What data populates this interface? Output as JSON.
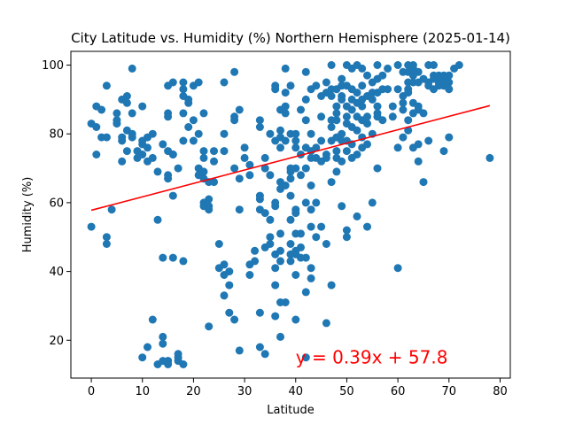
{
  "chart_data": {
    "type": "scatter",
    "title": "City Latitude vs. Humidity (%) Northern Hemisphere (2025-01-14)",
    "xlabel": "Latitude",
    "ylabel": "Humidity (%)",
    "xlim": [
      -4,
      82
    ],
    "ylim": [
      9,
      104
    ],
    "xticks": [
      0,
      10,
      20,
      30,
      40,
      50,
      60,
      70,
      80
    ],
    "yticks": [
      20,
      40,
      60,
      80,
      100
    ],
    "grid": false,
    "legend": "none",
    "colors": {
      "points": "#1f77b4",
      "regression": "#ff0000",
      "annotation": "#ff0000"
    },
    "regression": {
      "slope": 0.39,
      "intercept": 57.8,
      "x_range": [
        0,
        78
      ],
      "equation_label": "y = 0.39x + 57.8",
      "label_anchor": [
        40,
        15
      ]
    },
    "points": [
      [
        0,
        83
      ],
      [
        0,
        53
      ],
      [
        1,
        88
      ],
      [
        1,
        82
      ],
      [
        1,
        74
      ],
      [
        2,
        79
      ],
      [
        2,
        87
      ],
      [
        3,
        79
      ],
      [
        3,
        48
      ],
      [
        3,
        50
      ],
      [
        3,
        94
      ],
      [
        4,
        58
      ],
      [
        5,
        84
      ],
      [
        5,
        86
      ],
      [
        5,
        83
      ],
      [
        6,
        90
      ],
      [
        6,
        72
      ],
      [
        6,
        78
      ],
      [
        6,
        79
      ],
      [
        7,
        91
      ],
      [
        7,
        89
      ],
      [
        7,
        75
      ],
      [
        7,
        81
      ],
      [
        8,
        99
      ],
      [
        8,
        86
      ],
      [
        8,
        80
      ],
      [
        8,
        79
      ],
      [
        9,
        73
      ],
      [
        9,
        75
      ],
      [
        10,
        88
      ],
      [
        10,
        15
      ],
      [
        10,
        77
      ],
      [
        10,
        78
      ],
      [
        10,
        74
      ],
      [
        11,
        72
      ],
      [
        11,
        76
      ],
      [
        11,
        79
      ],
      [
        11,
        18
      ],
      [
        12,
        80
      ],
      [
        12,
        26
      ],
      [
        12,
        73
      ],
      [
        13,
        69
      ],
      [
        13,
        55
      ],
      [
        13,
        13
      ],
      [
        14,
        14
      ],
      [
        14,
        21
      ],
      [
        14,
        19
      ],
      [
        14,
        44
      ],
      [
        14,
        77
      ],
      [
        15,
        86
      ],
      [
        15,
        85
      ],
      [
        15,
        94
      ],
      [
        15,
        13
      ],
      [
        15,
        14
      ],
      [
        15,
        14
      ],
      [
        15,
        67
      ],
      [
        15,
        68
      ],
      [
        15,
        75
      ],
      [
        16,
        95
      ],
      [
        16,
        74
      ],
      [
        16,
        44
      ],
      [
        16,
        62
      ],
      [
        16,
        74
      ],
      [
        17,
        70
      ],
      [
        17,
        14
      ],
      [
        17,
        15
      ],
      [
        17,
        16
      ],
      [
        18,
        95
      ],
      [
        18,
        93
      ],
      [
        18,
        91
      ],
      [
        18,
        86
      ],
      [
        18,
        78
      ],
      [
        18,
        43
      ],
      [
        18,
        13
      ],
      [
        19,
        89
      ],
      [
        19,
        90
      ],
      [
        19,
        82
      ],
      [
        20,
        84
      ],
      [
        20,
        78
      ],
      [
        20,
        94
      ],
      [
        21,
        95
      ],
      [
        21,
        80
      ],
      [
        21,
        70
      ],
      [
        21,
        68
      ],
      [
        22,
        69
      ],
      [
        22,
        86
      ],
      [
        22,
        75
      ],
      [
        22,
        73
      ],
      [
        22,
        67
      ],
      [
        22,
        60
      ],
      [
        22,
        59
      ],
      [
        23,
        59
      ],
      [
        23,
        58
      ],
      [
        23,
        24
      ],
      [
        23,
        61
      ],
      [
        23,
        66
      ],
      [
        24,
        75
      ],
      [
        24,
        72
      ],
      [
        24,
        66
      ],
      [
        25,
        41
      ],
      [
        25,
        48
      ],
      [
        26,
        95
      ],
      [
        26,
        80
      ],
      [
        26,
        75
      ],
      [
        26,
        42
      ],
      [
        26,
        39
      ],
      [
        26,
        33
      ],
      [
        27,
        40
      ],
      [
        27,
        36
      ],
      [
        27,
        28
      ],
      [
        28,
        98
      ],
      [
        28,
        85
      ],
      [
        28,
        84
      ],
      [
        28,
        70
      ],
      [
        28,
        26
      ],
      [
        29,
        87
      ],
      [
        29,
        67
      ],
      [
        29,
        58
      ],
      [
        29,
        17
      ],
      [
        30,
        76
      ],
      [
        30,
        73
      ],
      [
        31,
        71
      ],
      [
        31,
        68
      ],
      [
        31,
        42
      ],
      [
        31,
        39
      ],
      [
        32,
        46
      ],
      [
        32,
        43
      ],
      [
        33,
        84
      ],
      [
        33,
        82
      ],
      [
        33,
        62
      ],
      [
        33,
        61
      ],
      [
        33,
        58
      ],
      [
        33,
        28
      ],
      [
        33,
        18
      ],
      [
        34,
        70
      ],
      [
        34,
        73
      ],
      [
        34,
        57
      ],
      [
        34,
        47
      ],
      [
        34,
        16
      ],
      [
        35,
        80
      ],
      [
        35,
        68
      ],
      [
        35,
        55
      ],
      [
        35,
        50
      ],
      [
        35,
        48
      ],
      [
        36,
        94
      ],
      [
        36,
        93
      ],
      [
        36,
        78
      ],
      [
        36,
        45
      ],
      [
        36,
        41
      ],
      [
        36,
        36
      ],
      [
        36,
        27
      ],
      [
        36,
        59
      ],
      [
        36,
        60
      ],
      [
        37,
        87
      ],
      [
        37,
        81
      ],
      [
        37,
        79
      ],
      [
        37,
        76
      ],
      [
        37,
        66
      ],
      [
        37,
        64
      ],
      [
        37,
        51
      ],
      [
        37,
        46
      ],
      [
        37,
        43
      ],
      [
        37,
        31
      ],
      [
        37,
        21
      ],
      [
        38,
        99
      ],
      [
        38,
        92
      ],
      [
        38,
        88
      ],
      [
        38,
        86
      ],
      [
        38,
        78
      ],
      [
        38,
        65
      ],
      [
        38,
        31
      ],
      [
        39,
        94
      ],
      [
        39,
        80
      ],
      [
        39,
        70
      ],
      [
        39,
        69
      ],
      [
        39,
        67
      ],
      [
        39,
        62
      ],
      [
        39,
        55
      ],
      [
        39,
        48
      ],
      [
        39,
        45
      ],
      [
        39,
        43
      ],
      [
        40,
        80
      ],
      [
        40,
        78
      ],
      [
        40,
        76
      ],
      [
        40,
        70
      ],
      [
        40,
        58
      ],
      [
        40,
        57
      ],
      [
        40,
        51
      ],
      [
        40,
        46
      ],
      [
        40,
        45
      ],
      [
        40,
        39
      ],
      [
        40,
        26
      ],
      [
        41,
        87
      ],
      [
        41,
        74
      ],
      [
        41,
        68
      ],
      [
        41,
        51
      ],
      [
        41,
        47
      ],
      [
        41,
        44
      ],
      [
        42,
        98
      ],
      [
        42,
        90
      ],
      [
        42,
        84
      ],
      [
        42,
        76
      ],
      [
        42,
        70
      ],
      [
        42,
        60
      ],
      [
        42,
        44
      ],
      [
        42,
        34
      ],
      [
        42,
        15
      ],
      [
        43,
        93
      ],
      [
        43,
        80
      ],
      [
        43,
        75
      ],
      [
        43,
        73
      ],
      [
        43,
        65
      ],
      [
        43,
        58
      ],
      [
        43,
        53
      ],
      [
        43,
        41
      ],
      [
        43,
        38
      ],
      [
        44,
        94
      ],
      [
        44,
        76
      ],
      [
        44,
        73
      ],
      [
        44,
        60
      ],
      [
        44,
        50
      ],
      [
        45,
        91
      ],
      [
        45,
        85
      ],
      [
        45,
        78
      ],
      [
        45,
        72
      ],
      [
        45,
        53
      ],
      [
        46,
        95
      ],
      [
        46,
        92
      ],
      [
        46,
        74
      ],
      [
        46,
        73
      ],
      [
        46,
        25
      ],
      [
        46,
        48
      ],
      [
        47,
        100
      ],
      [
        47,
        93
      ],
      [
        47,
        91
      ],
      [
        47,
        84
      ],
      [
        47,
        82
      ],
      [
        47,
        78
      ],
      [
        47,
        66
      ],
      [
        47,
        36
      ],
      [
        48,
        93
      ],
      [
        48,
        88
      ],
      [
        48,
        86
      ],
      [
        48,
        84
      ],
      [
        48,
        79
      ],
      [
        48,
        75
      ],
      [
        48,
        73
      ],
      [
        48,
        69
      ],
      [
        49,
        96
      ],
      [
        49,
        94
      ],
      [
        49,
        91
      ],
      [
        49,
        90
      ],
      [
        49,
        80
      ],
      [
        49,
        78
      ],
      [
        49,
        72
      ],
      [
        49,
        59
      ],
      [
        50,
        100
      ],
      [
        50,
        94
      ],
      [
        50,
        88
      ],
      [
        50,
        85
      ],
      [
        50,
        83
      ],
      [
        50,
        78
      ],
      [
        50,
        75
      ],
      [
        50,
        52
      ],
      [
        50,
        50
      ],
      [
        51,
        99
      ],
      [
        51,
        93
      ],
      [
        51,
        90
      ],
      [
        51,
        87
      ],
      [
        51,
        82
      ],
      [
        51,
        77
      ],
      [
        51,
        73
      ],
      [
        52,
        100
      ],
      [
        52,
        92
      ],
      [
        52,
        89
      ],
      [
        52,
        85
      ],
      [
        52,
        81
      ],
      [
        52,
        74
      ],
      [
        52,
        56
      ],
      [
        53,
        99
      ],
      [
        53,
        94
      ],
      [
        53,
        90
      ],
      [
        53,
        88
      ],
      [
        53,
        84
      ],
      [
        53,
        79
      ],
      [
        53,
        76
      ],
      [
        54,
        97
      ],
      [
        54,
        91
      ],
      [
        54,
        85
      ],
      [
        54,
        83
      ],
      [
        54,
        77
      ],
      [
        54,
        53
      ],
      [
        55,
        95
      ],
      [
        55,
        92
      ],
      [
        55,
        90
      ],
      [
        55,
        80
      ],
      [
        55,
        60
      ],
      [
        56,
        100
      ],
      [
        56,
        96
      ],
      [
        56,
        92
      ],
      [
        56,
        88
      ],
      [
        56,
        86
      ],
      [
        56,
        85
      ],
      [
        56,
        70
      ],
      [
        57,
        97
      ],
      [
        57,
        93
      ],
      [
        57,
        84
      ],
      [
        58,
        99
      ],
      [
        58,
        93
      ],
      [
        59,
        88
      ],
      [
        59,
        85
      ],
      [
        60,
        100
      ],
      [
        60,
        93
      ],
      [
        60,
        76
      ],
      [
        60,
        41
      ],
      [
        61,
        98
      ],
      [
        61,
        91
      ],
      [
        61,
        89
      ],
      [
        61,
        87
      ],
      [
        61,
        79
      ],
      [
        62,
        100
      ],
      [
        62,
        98
      ],
      [
        62,
        95
      ],
      [
        62,
        93
      ],
      [
        62,
        92
      ],
      [
        62,
        84
      ],
      [
        62,
        81
      ],
      [
        63,
        100
      ],
      [
        63,
        99
      ],
      [
        63,
        97
      ],
      [
        63,
        95
      ],
      [
        63,
        89
      ],
      [
        63,
        86
      ],
      [
        63,
        76
      ],
      [
        64,
        98
      ],
      [
        64,
        95
      ],
      [
        64,
        88
      ],
      [
        64,
        87
      ],
      [
        64,
        77
      ],
      [
        64,
        72
      ],
      [
        65,
        96
      ],
      [
        65,
        86
      ],
      [
        65,
        66
      ],
      [
        66,
        100
      ],
      [
        66,
        95
      ],
      [
        66,
        94
      ],
      [
        66,
        78
      ],
      [
        67,
        100
      ],
      [
        67,
        97
      ],
      [
        67,
        96
      ],
      [
        67,
        93
      ],
      [
        68,
        97
      ],
      [
        68,
        95
      ],
      [
        68,
        94
      ],
      [
        69,
        97
      ],
      [
        69,
        96
      ],
      [
        69,
        94
      ],
      [
        69,
        75
      ],
      [
        70,
        97
      ],
      [
        70,
        95
      ],
      [
        70,
        93
      ],
      [
        70,
        79
      ],
      [
        71,
        99
      ],
      [
        72,
        100
      ],
      [
        78,
        73
      ]
    ]
  }
}
